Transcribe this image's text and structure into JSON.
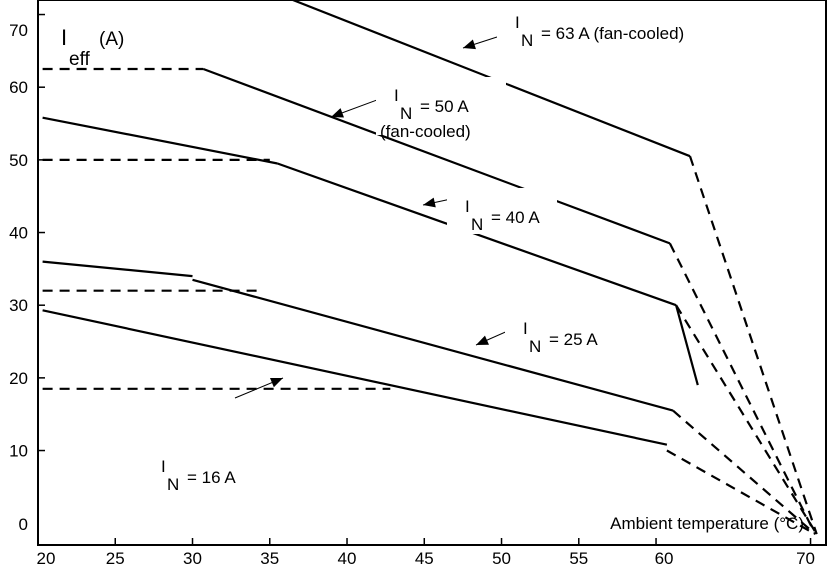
{
  "chart_data": {
    "type": "line",
    "title": "",
    "xlabel": "Ambient temperature (°C)",
    "ylabel_main": "I",
    "ylabel_sub": "eff",
    "ylabel_unit": "(A)",
    "xlim": [
      20,
      71
    ],
    "ylim": [
      -3,
      72
    ],
    "x_ticks": [
      20,
      25,
      30,
      35,
      40,
      45,
      50,
      55,
      60,
      70
    ],
    "y_ticks": [
      0,
      10,
      20,
      30,
      40,
      50,
      60,
      70
    ],
    "grid": false,
    "series": [
      {
        "label_main": "I",
        "label_sub": "N",
        "label_rest": "= 63 A (fan-cooled)",
        "segments": [
          {
            "style": "solid",
            "x": [
              36.5,
              62.2
            ],
            "y": [
              72.0,
              50.5
            ]
          },
          {
            "style": "dashed",
            "x": [
              62.2,
              70.4
            ],
            "y": [
              50.5,
              -1.5
            ]
          }
        ]
      },
      {
        "label_main": "I",
        "label_sub": "N",
        "label_rest": "= 50 A",
        "label_line2": "(fan-cooled)",
        "segments": [
          {
            "style": "dashed",
            "x": [
              20.3,
              30.7
            ],
            "y": [
              62.5,
              62.5
            ]
          },
          {
            "style": "solid",
            "x": [
              30.7,
              60.9
            ],
            "y": [
              62.5,
              38.5
            ]
          },
          {
            "style": "dashed",
            "x": [
              60.9,
              70.3
            ],
            "y": [
              38.5,
              -1.5
            ]
          }
        ]
      },
      {
        "label_main": "I",
        "label_sub": "N",
        "label_rest": "= 40 A",
        "segments": [
          {
            "style": "dashed",
            "x": [
              20.3,
              35.0
            ],
            "y": [
              50.0,
              50.0
            ]
          },
          {
            "style": "solid",
            "x": [
              20.3,
              35.5
            ],
            "y": [
              55.8,
              49.5
            ]
          },
          {
            "style": "solid",
            "x": [
              35.5,
              61.3
            ],
            "y": [
              49.5,
              30.0
            ]
          },
          {
            "style": "solid",
            "x": [
              61.3,
              62.7
            ],
            "y": [
              30.0,
              19.0
            ]
          },
          {
            "style": "dashed",
            "x": [
              61.3,
              70.4
            ],
            "y": [
              30.0,
              -1.5
            ]
          }
        ]
      },
      {
        "label_main": "I",
        "label_sub": "N",
        "label_rest": "= 25 A",
        "segments": [
          {
            "style": "dashed",
            "x": [
              20.3,
              34.4
            ],
            "y": [
              32.0,
              32.0
            ]
          },
          {
            "style": "solid",
            "x": [
              20.3,
              30.0
            ],
            "y": [
              36.0,
              34.0
            ]
          },
          {
            "style": "solid",
            "x": [
              30.0,
              61.1
            ],
            "y": [
              33.5,
              15.5
            ]
          },
          {
            "style": "dashed",
            "x": [
              61.1,
              70.3
            ],
            "y": [
              15.5,
              -1.5
            ]
          }
        ]
      },
      {
        "label_main": "I",
        "label_sub": "N",
        "label_rest": "= 16 A",
        "segments": [
          {
            "style": "dashed",
            "x": [
              20.3,
              42.8
            ],
            "y": [
              18.5,
              18.5
            ]
          },
          {
            "style": "solid",
            "x": [
              20.3,
              60.7
            ],
            "y": [
              29.3,
              10.8
            ]
          },
          {
            "style": "dashed",
            "x": [
              60.7,
              70.3
            ],
            "y": [
              10.0,
              -1.5
            ]
          }
        ]
      }
    ]
  }
}
